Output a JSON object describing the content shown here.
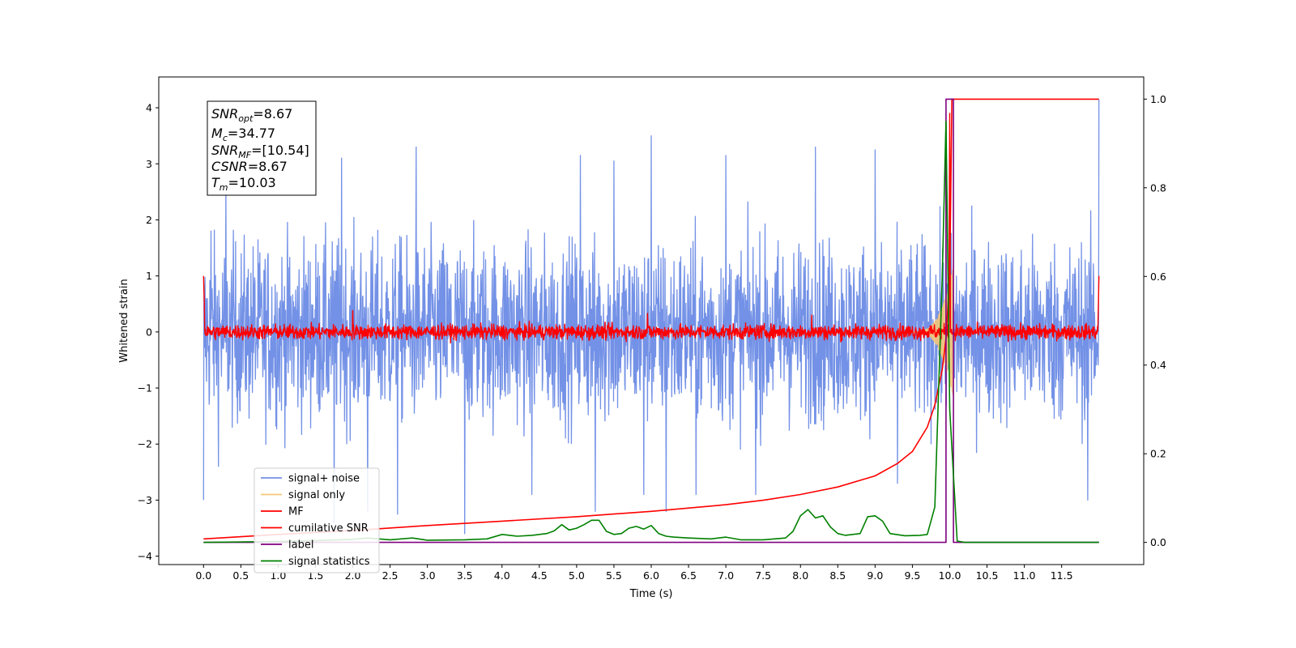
{
  "chart_data": {
    "type": "line",
    "xlabel": "Time (s)",
    "ylabel_left": "Whitened strain",
    "ylabel_right": "",
    "xlim": [
      -0.6,
      12.6
    ],
    "ylim_left": [
      -4.15,
      4.55
    ],
    "ylim_right": [
      -0.05,
      1.05
    ],
    "x_ticks": [
      "0.0",
      "0.5",
      "1.0",
      "1.5",
      "2.0",
      "2.5",
      "3.0",
      "3.5",
      "4.0",
      "4.5",
      "5.0",
      "5.5",
      "6.0",
      "6.5",
      "7.0",
      "7.5",
      "8.0",
      "8.5",
      "9.0",
      "9.5",
      "10.0",
      "10.5",
      "11.0",
      "11.5"
    ],
    "y_ticks_left": [
      "4",
      "3",
      "2",
      "1",
      "0",
      "−1",
      "−2",
      "−3",
      "−4"
    ],
    "y_ticks_right": [
      "1.0",
      "0.8",
      "0.6",
      "0.4",
      "0.2",
      "0.0"
    ],
    "info_box": {
      "snr_opt": {
        "base": "SNR",
        "sub": "opt",
        "value": "=8.67"
      },
      "mc": {
        "base": "M",
        "sub": "c",
        "value": "=34.77"
      },
      "snr_mf": {
        "base": "SNR",
        "sub": "MF",
        "value": "=[10.54]"
      },
      "csnr": {
        "base": "CSNR",
        "sub": "",
        "value": "=8.67"
      },
      "tm": {
        "base": "T",
        "sub": "m",
        "value": "=10.03"
      }
    },
    "legend": {
      "position": "lower-left",
      "entries": [
        {
          "label": "signal+ noise",
          "color": "#7391e6"
        },
        {
          "label": "signal only",
          "color": "#f6c778"
        },
        {
          "label": "MF",
          "color": "#ff0000"
        },
        {
          "label": "cumilative SNR",
          "color": "#ff0000"
        },
        {
          "label": "label",
          "color": "#800080"
        },
        {
          "label": "signal statistics",
          "color": "#008000"
        }
      ]
    },
    "series": [
      {
        "name": "signal+ noise",
        "axis": "left",
        "color": "#7391e6",
        "x_range": [
          0.0,
          12.0
        ],
        "description_values": {
          "typical_amplitude": 1.3,
          "peak_max": 4.15,
          "peak_min": -3.6
        },
        "notable_peaks": [
          [
            0.0,
            -3.0
          ],
          [
            0.1,
            1.8
          ],
          [
            0.2,
            -2.4
          ],
          [
            0.3,
            2.6
          ],
          [
            1.75,
            -3.4
          ],
          [
            1.85,
            3.1
          ],
          [
            2.2,
            -3.2
          ],
          [
            2.6,
            -3.25
          ],
          [
            2.85,
            3.3
          ],
          [
            3.5,
            -3.6
          ],
          [
            4.4,
            -2.9
          ],
          [
            5.05,
            3.15
          ],
          [
            5.25,
            -3.2
          ],
          [
            5.5,
            3.05
          ],
          [
            5.9,
            -2.9
          ],
          [
            6.0,
            3.5
          ],
          [
            6.2,
            -3.2
          ],
          [
            6.6,
            -2.9
          ],
          [
            7.0,
            3.15
          ],
          [
            7.4,
            -2.9
          ],
          [
            8.2,
            3.3
          ],
          [
            9.0,
            3.25
          ],
          [
            9.3,
            -2.7
          ],
          [
            9.95,
            3.9
          ],
          [
            12.0,
            4.15
          ],
          [
            11.85,
            -3.0
          ]
        ]
      },
      {
        "name": "signal only",
        "axis": "left",
        "color": "#f6c778",
        "x_range": [
          9.5,
          10.05
        ],
        "description_values": {
          "peak_amplitude": 1.2
        }
      },
      {
        "name": "MF",
        "axis": "left",
        "color": "#ff0000",
        "x_range": [
          0.0,
          12.0
        ],
        "description_values": {
          "baseline": 0.0,
          "noise_amplitude": 0.12,
          "edge_values": [
            1.0,
            1.0
          ]
        },
        "notable_peaks": [
          [
            2.0,
            0.38
          ],
          [
            5.95,
            0.33
          ],
          [
            8.15,
            0.3
          ],
          [
            10.0,
            3.9
          ]
        ]
      },
      {
        "name": "cumilative SNR",
        "axis": "right",
        "color": "#ff0000",
        "x": [
          0.0,
          1.0,
          2.0,
          3.0,
          4.0,
          5.0,
          6.0,
          7.0,
          7.5,
          8.0,
          8.5,
          9.0,
          9.3,
          9.5,
          9.7,
          9.8,
          9.9,
          9.95,
          10.0,
          10.03,
          12.0
        ],
        "values": [
          0.008,
          0.018,
          0.027,
          0.038,
          0.048,
          0.058,
          0.07,
          0.085,
          0.095,
          0.108,
          0.125,
          0.15,
          0.178,
          0.205,
          0.26,
          0.31,
          0.39,
          0.46,
          0.6,
          1.0,
          1.0
        ]
      },
      {
        "name": "label",
        "axis": "right",
        "color": "#800080",
        "x": [
          0.0,
          9.95,
          9.95,
          10.05,
          10.05,
          12.0
        ],
        "values": [
          0.0,
          0.0,
          1.0,
          1.0,
          0.0,
          0.0
        ]
      },
      {
        "name": "signal statistics",
        "axis": "right",
        "color": "#008000",
        "x": [
          0.0,
          1.0,
          1.5,
          2.0,
          2.2,
          2.5,
          2.8,
          3.0,
          3.5,
          3.8,
          4.0,
          4.2,
          4.4,
          4.6,
          4.7,
          4.8,
          4.9,
          5.0,
          5.1,
          5.2,
          5.3,
          5.4,
          5.5,
          5.6,
          5.7,
          5.8,
          5.9,
          6.0,
          6.1,
          6.2,
          6.3,
          6.5,
          6.8,
          7.0,
          7.2,
          7.5,
          7.8,
          7.9,
          8.0,
          8.1,
          8.2,
          8.3,
          8.4,
          8.5,
          8.6,
          8.8,
          8.9,
          9.0,
          9.1,
          9.2,
          9.4,
          9.6,
          9.7,
          9.8,
          9.9,
          9.95,
          10.0,
          10.1,
          10.2,
          11.0,
          12.0
        ],
        "values": [
          0.0,
          0.002,
          0.004,
          0.007,
          0.01,
          0.006,
          0.01,
          0.005,
          0.006,
          0.008,
          0.018,
          0.014,
          0.016,
          0.02,
          0.026,
          0.04,
          0.028,
          0.032,
          0.04,
          0.05,
          0.05,
          0.025,
          0.018,
          0.02,
          0.032,
          0.036,
          0.03,
          0.038,
          0.02,
          0.014,
          0.012,
          0.01,
          0.008,
          0.012,
          0.006,
          0.006,
          0.01,
          0.025,
          0.06,
          0.074,
          0.055,
          0.06,
          0.035,
          0.02,
          0.016,
          0.02,
          0.058,
          0.06,
          0.048,
          0.02,
          0.015,
          0.016,
          0.018,
          0.08,
          0.6,
          0.95,
          0.3,
          0.003,
          0.0,
          0.0,
          0.0
        ]
      }
    ]
  }
}
